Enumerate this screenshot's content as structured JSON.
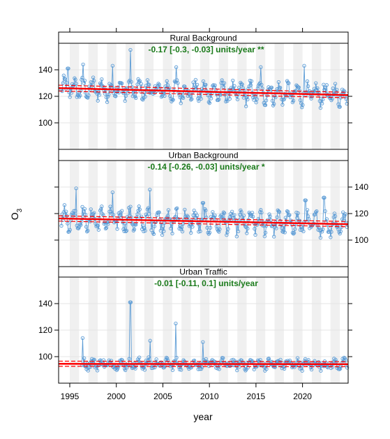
{
  "chart_data": {
    "type": "line",
    "ylabel": "O",
    "ylabel_sub": "3",
    "xlabel": "year",
    "xlim": [
      1993.8,
      2024.9
    ],
    "x_ticks": [
      1995,
      2000,
      2005,
      2010,
      2015,
      2020
    ],
    "x_tick_labels": [
      "1995",
      "2000",
      "2005",
      "2010",
      "2015",
      "2020"
    ],
    "y_ticks": [
      100,
      120,
      140
    ],
    "y_tick_labels": [
      "100",
      "120",
      "140"
    ],
    "colors": {
      "line": "#5b9bd5",
      "trend": "#ff0000",
      "trend_text": "#1a7a1a",
      "shade": "#f0f0f0",
      "grid": "#e4e4e4"
    },
    "grid": true,
    "panels": [
      {
        "title": "Rural Background",
        "trend_label": "-0.17 [-0.3, -0.03] units/year **",
        "ylim": [
          80,
          160
        ],
        "y_axis_side": "left",
        "trend": {
          "start": 126.2,
          "end": 120.9,
          "ci_lower_start": 124.0,
          "ci_upper_start": 128.4,
          "ci_lower_end": 118.9,
          "ci_upper_end": 123.0
        },
        "series_base": 123,
        "series_amp": 10,
        "series_noise": 5,
        "spikes": [
          [
            2001.5,
            155
          ],
          [
            1999.6,
            143
          ],
          [
            2020.2,
            143
          ],
          [
            2015.5,
            142
          ],
          [
            1994.8,
            141
          ],
          [
            2006.4,
            142
          ],
          [
            1996.4,
            144
          ]
        ]
      },
      {
        "title": "Urban Background",
        "trend_label": "-0.14 [-0.26, -0.03] units/year *",
        "ylim": [
          80,
          160
        ],
        "y_axis_side": "right",
        "trend": {
          "start": 116.3,
          "end": 112.0,
          "ci_lower_start": 114.3,
          "ci_upper_start": 118.3,
          "ci_lower_end": 110.1,
          "ci_upper_end": 114.0
        },
        "series_base": 115,
        "series_amp": 11,
        "series_noise": 5,
        "spikes": [
          [
            1995.7,
            139
          ],
          [
            2003.6,
            138
          ],
          [
            1999.6,
            136
          ],
          [
            2022.3,
            132
          ],
          [
            2020.3,
            130
          ],
          [
            2009.3,
            128
          ]
        ]
      },
      {
        "title": "Urban Traffic",
        "trend_label": "-0.01 [-0.11, 0.1] units/year",
        "ylim": [
          80,
          160
        ],
        "y_axis_side": "left",
        "trend": {
          "start": 94.6,
          "end": 94.3,
          "ci_lower_start": 92.7,
          "ci_upper_start": 96.6,
          "ci_lower_end": 92.4,
          "ci_upper_end": 96.2
        },
        "series_base": 94,
        "series_amp": 4,
        "series_noise": 3,
        "data_start": 1996.3,
        "spikes": [
          [
            2001.5,
            141
          ],
          [
            2006.4,
            125
          ],
          [
            1996.4,
            114
          ],
          [
            2003.6,
            112
          ],
          [
            2009.3,
            111
          ]
        ]
      }
    ]
  }
}
